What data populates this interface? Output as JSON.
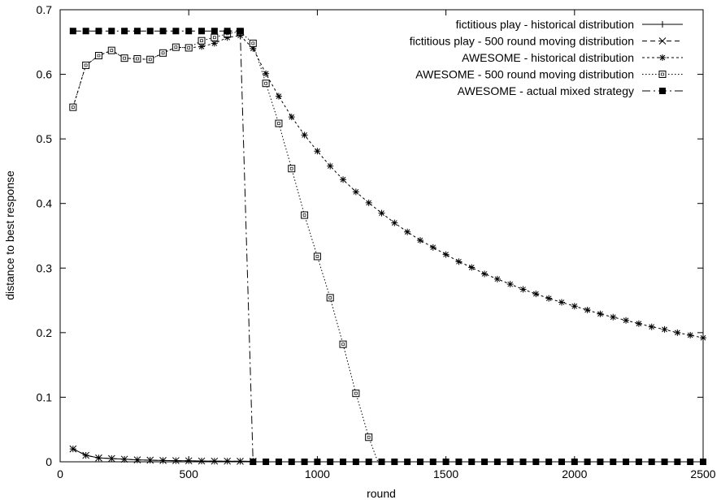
{
  "chart_data": {
    "type": "line",
    "title": "",
    "xlabel": "round",
    "ylabel": "distance to best response",
    "xlim": [
      0,
      2500
    ],
    "ylim": [
      0,
      0.7
    ],
    "xticks": [
      0,
      500,
      1000,
      1500,
      2000,
      2500
    ],
    "yticks": [
      0,
      0.1,
      0.2,
      0.3,
      0.4,
      0.5,
      0.6,
      0.7
    ],
    "legend_position": "top-right",
    "grid": false,
    "series": [
      {
        "name": "fictitious play - historical distribution",
        "line_style": "solid",
        "marker": "plus",
        "points": [
          [
            50,
            0.02
          ],
          [
            100,
            0.01
          ],
          [
            150,
            0.006
          ],
          [
            200,
            0.005
          ],
          [
            250,
            0.004
          ],
          [
            300,
            0.003
          ],
          [
            350,
            0.0025
          ],
          [
            400,
            0.002
          ],
          [
            450,
            0.0018
          ],
          [
            500,
            0.0015
          ],
          [
            550,
            0.0012
          ],
          [
            600,
            0.001
          ],
          [
            650,
            0.001
          ],
          [
            700,
            0.0008
          ],
          [
            750,
            0.0008
          ]
        ]
      },
      {
        "name": "fictitious play - 500 round moving distribution",
        "line_style": "dashed",
        "marker": "cross",
        "points": [
          [
            50,
            0.02
          ],
          [
            100,
            0.01
          ],
          [
            150,
            0.006
          ],
          [
            200,
            0.005
          ],
          [
            250,
            0.004
          ],
          [
            300,
            0.003
          ],
          [
            350,
            0.0025
          ],
          [
            400,
            0.002
          ],
          [
            450,
            0.0018
          ],
          [
            500,
            0.0015
          ],
          [
            550,
            0.0012
          ],
          [
            600,
            0.001
          ],
          [
            650,
            0.001
          ],
          [
            700,
            0.0008
          ],
          [
            750,
            0.0008
          ]
        ]
      },
      {
        "name": "AWESOME - historical distribution",
        "line_style": "dotted-dashed",
        "marker": "star",
        "points": [
          [
            50,
            0.549
          ],
          [
            100,
            0.614
          ],
          [
            150,
            0.629
          ],
          [
            200,
            0.637
          ],
          [
            250,
            0.625
          ],
          [
            300,
            0.624
          ],
          [
            350,
            0.623
          ],
          [
            400,
            0.633
          ],
          [
            450,
            0.642
          ],
          [
            500,
            0.641
          ],
          [
            550,
            0.643
          ],
          [
            600,
            0.648
          ],
          [
            650,
            0.657
          ],
          [
            700,
            0.66
          ],
          [
            750,
            0.64
          ],
          [
            800,
            0.601
          ],
          [
            850,
            0.566
          ],
          [
            900,
            0.534
          ],
          [
            950,
            0.506
          ],
          [
            1000,
            0.481
          ],
          [
            1050,
            0.458
          ],
          [
            1100,
            0.437
          ],
          [
            1150,
            0.418
          ],
          [
            1200,
            0.401
          ],
          [
            1250,
            0.385
          ],
          [
            1300,
            0.37
          ],
          [
            1350,
            0.356
          ],
          [
            1400,
            0.343
          ],
          [
            1450,
            0.332
          ],
          [
            1500,
            0.321
          ],
          [
            1550,
            0.31
          ],
          [
            1600,
            0.301
          ],
          [
            1650,
            0.291
          ],
          [
            1700,
            0.283
          ],
          [
            1750,
            0.275
          ],
          [
            1800,
            0.267
          ],
          [
            1850,
            0.26
          ],
          [
            1900,
            0.253
          ],
          [
            1950,
            0.247
          ],
          [
            2000,
            0.241
          ],
          [
            2050,
            0.235
          ],
          [
            2100,
            0.229
          ],
          [
            2150,
            0.224
          ],
          [
            2200,
            0.219
          ],
          [
            2250,
            0.214
          ],
          [
            2300,
            0.209
          ],
          [
            2350,
            0.205
          ],
          [
            2400,
            0.2
          ],
          [
            2450,
            0.196
          ],
          [
            2500,
            0.192
          ]
        ]
      },
      {
        "name": "AWESOME - 500 round moving distribution",
        "line_style": "dotted",
        "marker": "open-square",
        "points": [
          [
            50,
            0.549
          ],
          [
            100,
            0.614
          ],
          [
            150,
            0.629
          ],
          [
            200,
            0.637
          ],
          [
            250,
            0.625
          ],
          [
            300,
            0.624
          ],
          [
            350,
            0.623
          ],
          [
            400,
            0.633
          ],
          [
            450,
            0.642
          ],
          [
            500,
            0.641
          ],
          [
            550,
            0.652
          ],
          [
            600,
            0.657
          ],
          [
            650,
            0.663
          ],
          [
            700,
            0.666
          ],
          [
            750,
            0.648
          ],
          [
            800,
            0.586
          ],
          [
            850,
            0.524
          ],
          [
            900,
            0.454
          ],
          [
            950,
            0.382
          ],
          [
            1000,
            0.318
          ],
          [
            1050,
            0.254
          ],
          [
            1100,
            0.182
          ],
          [
            1150,
            0.106
          ],
          [
            1200,
            0.038
          ],
          [
            1235,
            0.0
          ]
        ]
      },
      {
        "name": "AWESOME - actual mixed strategy",
        "line_style": "dash-dot",
        "marker": "filled-square",
        "points": [
          [
            50,
            0.667
          ],
          [
            100,
            0.667
          ],
          [
            150,
            0.667
          ],
          [
            200,
            0.667
          ],
          [
            250,
            0.667
          ],
          [
            300,
            0.667
          ],
          [
            350,
            0.667
          ],
          [
            400,
            0.667
          ],
          [
            450,
            0.667
          ],
          [
            500,
            0.667
          ],
          [
            550,
            0.667
          ],
          [
            600,
            0.667
          ],
          [
            650,
            0.667
          ],
          [
            700,
            0.667
          ],
          [
            750,
            0.0
          ],
          [
            800,
            0.0
          ],
          [
            850,
            0.0
          ],
          [
            900,
            0.0
          ],
          [
            950,
            0.0
          ],
          [
            1000,
            0.0
          ],
          [
            1050,
            0.0
          ],
          [
            1100,
            0.0
          ],
          [
            1150,
            0.0
          ],
          [
            1200,
            0.0
          ],
          [
            1250,
            0.0
          ],
          [
            1300,
            0.0
          ],
          [
            1350,
            0.0
          ],
          [
            1400,
            0.0
          ],
          [
            1450,
            0.0
          ],
          [
            1500,
            0.0
          ],
          [
            1550,
            0.0
          ],
          [
            1600,
            0.0
          ],
          [
            1650,
            0.0
          ],
          [
            1700,
            0.0
          ],
          [
            1750,
            0.0
          ],
          [
            1800,
            0.0
          ],
          [
            1850,
            0.0
          ],
          [
            1900,
            0.0
          ],
          [
            1950,
            0.0
          ],
          [
            2000,
            0.0
          ],
          [
            2050,
            0.0
          ],
          [
            2100,
            0.0
          ],
          [
            2150,
            0.0
          ],
          [
            2200,
            0.0
          ],
          [
            2250,
            0.0
          ],
          [
            2300,
            0.0
          ],
          [
            2350,
            0.0
          ],
          [
            2400,
            0.0
          ],
          [
            2450,
            0.0
          ],
          [
            2500,
            0.0
          ]
        ]
      }
    ]
  }
}
